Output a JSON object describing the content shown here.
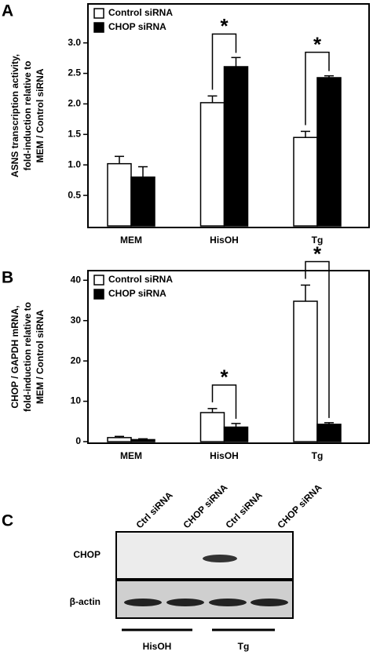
{
  "chart_data": [
    {
      "type": "bar",
      "panel_label": "A",
      "ylabel": [
        "ASNS transcription activity,",
        "fold-induction relative to",
        "MEM / Control siRNA"
      ],
      "categories": [
        "MEM",
        "HisOH",
        "Tg"
      ],
      "series": [
        {
          "name": "Control siRNA",
          "color": "#ffffff",
          "values": [
            1.02,
            2.02,
            1.45
          ],
          "errors": [
            0.12,
            0.11,
            0.1
          ]
        },
        {
          "name": "CHOP siRNA",
          "color": "#000000",
          "values": [
            0.8,
            2.61,
            2.43
          ],
          "errors": [
            0.17,
            0.15,
            0.03
          ]
        }
      ],
      "significance": [
        null,
        "*",
        "*"
      ],
      "ylim": [
        0,
        3.6
      ],
      "yticks": [
        0.5,
        {
          "value": 1,
          "label": "1.0"
        },
        1.5,
        {
          "value": 2,
          "label": "2.0"
        },
        2.5,
        {
          "value": 3,
          "label": "3.0"
        }
      ],
      "legend": "upper left"
    },
    {
      "type": "bar",
      "panel_label": "B",
      "ylabel": [
        "CHOP / GAPDH mRNA,",
        "fold-induction relative to",
        "MEM / Control siRNA"
      ],
      "categories": [
        "MEM",
        "HisOH",
        "Tg"
      ],
      "series": [
        {
          "name": "Control siRNA",
          "color": "#ffffff",
          "values": [
            1.0,
            7.2,
            34.8
          ],
          "errors": [
            0.3,
            1.0,
            4.0
          ]
        },
        {
          "name": "CHOP siRNA",
          "color": "#000000",
          "values": [
            0.5,
            3.6,
            4.3
          ],
          "errors": [
            0.2,
            0.9,
            0.4
          ]
        }
      ],
      "significance": [
        null,
        "*",
        "*"
      ],
      "ylim": [
        0,
        42
      ],
      "yticks": [
        0,
        10,
        20,
        30,
        40
      ],
      "legend": "upper left"
    }
  ],
  "blot": {
    "panel_label": "C",
    "lanes": [
      "Ctrl siRNA",
      "CHOP siRNA",
      "Ctrl siRNA",
      "CHOP siRNA"
    ],
    "rows": [
      "CHOP",
      "β-actin"
    ],
    "groups": [
      "HisOH",
      "Tg"
    ]
  }
}
